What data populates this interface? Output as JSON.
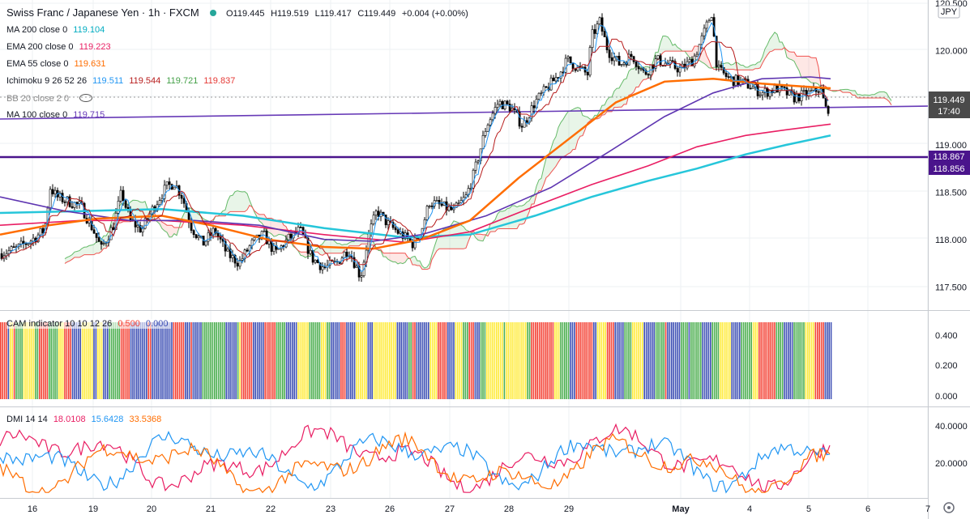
{
  "header": {
    "symbol_title": "Swiss Franc / Japanese Yen · 1h · FXCM",
    "open": "O119.445",
    "high": "H119.519",
    "low": "L119.417",
    "close": "C119.449",
    "change": "+0.004 (+0.00%)"
  },
  "legend": [
    {
      "label": "MA 200 close 0",
      "value": "119.104",
      "color": "#00bcd4"
    },
    {
      "label": "EMA 200 close 0",
      "value": "119.223",
      "color": "#e91e63"
    },
    {
      "label": "EMA 55 close 0",
      "value": "119.631",
      "color": "#ff6d00"
    },
    {
      "label": "Ichimoku 9 26 52 26",
      "values": [
        "119.511",
        "119.544",
        "119.721",
        "119.837"
      ],
      "colors": [
        "#2196f3",
        "#b71c1c",
        "#43a047",
        "#e53935"
      ]
    },
    {
      "label": "BB 20 close 2 0",
      "value": "",
      "color": "#8a8a8a"
    },
    {
      "label": "MA 100 close 0",
      "value": "119.715",
      "color": "#673ab7"
    }
  ],
  "currency": "JPY",
  "price_badges": [
    {
      "text": "119.449",
      "sub": "17:40",
      "color": "#4a4a4a"
    },
    {
      "text": "118.867",
      "color": "#4a148c"
    },
    {
      "text": "118.856",
      "color": "#4a148c"
    }
  ],
  "cam_legend": {
    "label": "CAM indicator 10 10 12 26",
    "v1": "0.500",
    "v2": "0.000"
  },
  "dmi_legend": {
    "label": "DMI 14 14",
    "v1": "18.0108",
    "v2": "15.6428",
    "v3": "33.5368"
  },
  "colors": {
    "up": "#ffffff",
    "down": "#000000",
    "green": "#4caf50",
    "yellow": "#ffeb3b",
    "blue": "#3f51b5",
    "red": "#f44336"
  },
  "chart_data": {
    "type": "candlestick",
    "price_ticks": [
      "120.500",
      "120.000",
      "119.500",
      "119.000",
      "118.500",
      "118.000",
      "117.500"
    ],
    "cam_ticks": [
      "0.400",
      "0.200",
      "0.000"
    ],
    "dmi_ticks": [
      "40.0000",
      "20.0000"
    ],
    "x_labels": [
      "16",
      "19",
      "20",
      "21",
      "22",
      "23",
      "26",
      "27",
      "28",
      "29",
      "May",
      "4",
      "5",
      "6",
      "7"
    ],
    "price_range": [
      117.2,
      120.6
    ],
    "price_path": [
      [
        0,
        117.85
      ],
      [
        20,
        117.9
      ],
      [
        40,
        118.0
      ],
      [
        55,
        118.1
      ],
      [
        62,
        118.55
      ],
      [
        70,
        118.45
      ],
      [
        85,
        118.4
      ],
      [
        100,
        118.35
      ],
      [
        115,
        118.1
      ],
      [
        125,
        117.9
      ],
      [
        140,
        118.15
      ],
      [
        150,
        118.5
      ],
      [
        160,
        118.2
      ],
      [
        175,
        118.1
      ],
      [
        190,
        118.35
      ],
      [
        205,
        118.55
      ],
      [
        215,
        118.6
      ],
      [
        225,
        118.45
      ],
      [
        235,
        118.15
      ],
      [
        250,
        117.95
      ],
      [
        265,
        118.1
      ],
      [
        280,
        117.85
      ],
      [
        295,
        117.75
      ],
      [
        310,
        117.95
      ],
      [
        325,
        118.05
      ],
      [
        340,
        117.85
      ],
      [
        355,
        118.0
      ],
      [
        370,
        118.1
      ],
      [
        385,
        117.8
      ],
      [
        400,
        117.7
      ],
      [
        415,
        117.75
      ],
      [
        430,
        117.9
      ],
      [
        445,
        117.6
      ],
      [
        455,
        118.05
      ],
      [
        465,
        118.3
      ],
      [
        480,
        118.15
      ],
      [
        495,
        118.05
      ],
      [
        510,
        117.95
      ],
      [
        520,
        118.1
      ],
      [
        530,
        118.4
      ],
      [
        545,
        118.35
      ],
      [
        560,
        118.3
      ],
      [
        575,
        118.45
      ],
      [
        585,
        118.7
      ],
      [
        600,
        119.2
      ],
      [
        615,
        119.45
      ],
      [
        630,
        119.4
      ],
      [
        645,
        119.2
      ],
      [
        660,
        119.45
      ],
      [
        675,
        119.6
      ],
      [
        690,
        119.75
      ],
      [
        700,
        119.9
      ],
      [
        715,
        119.8
      ],
      [
        725,
        119.75
      ],
      [
        730,
        120.15
      ],
      [
        740,
        120.3
      ],
      [
        750,
        120.0
      ],
      [
        765,
        119.85
      ],
      [
        780,
        119.95
      ],
      [
        795,
        119.75
      ],
      [
        810,
        119.9
      ],
      [
        825,
        119.85
      ],
      [
        840,
        119.8
      ],
      [
        855,
        119.9
      ],
      [
        865,
        120.1
      ],
      [
        878,
        120.4
      ],
      [
        885,
        119.8
      ],
      [
        900,
        119.7
      ],
      [
        920,
        119.65
      ],
      [
        940,
        119.55
      ],
      [
        960,
        119.6
      ],
      [
        980,
        119.5
      ],
      [
        1000,
        119.55
      ],
      [
        1012,
        119.6
      ],
      [
        1020,
        119.35
      ],
      [
        1025,
        119.45
      ]
    ],
    "ma200": [
      [
        0,
        118.28
      ],
      [
        100,
        118.3
      ],
      [
        200,
        118.32
      ],
      [
        300,
        118.25
      ],
      [
        400,
        118.12
      ],
      [
        500,
        118.02
      ],
      [
        580,
        118.05
      ],
      [
        660,
        118.25
      ],
      [
        730,
        118.45
      ],
      [
        800,
        118.62
      ],
      [
        860,
        118.75
      ],
      [
        920,
        118.9
      ],
      [
        970,
        119.0
      ],
      [
        1025,
        119.1
      ]
    ],
    "ema200": [
      [
        0,
        118.15
      ],
      [
        100,
        118.2
      ],
      [
        200,
        118.2
      ],
      [
        300,
        118.15
      ],
      [
        400,
        118.05
      ],
      [
        500,
        117.97
      ],
      [
        580,
        118.08
      ],
      [
        660,
        118.35
      ],
      [
        730,
        118.58
      ],
      [
        800,
        118.78
      ],
      [
        860,
        118.98
      ],
      [
        920,
        119.1
      ],
      [
        970,
        119.16
      ],
      [
        1025,
        119.22
      ]
    ],
    "ema55": [
      [
        0,
        118.05
      ],
      [
        60,
        118.15
      ],
      [
        120,
        118.22
      ],
      [
        200,
        118.25
      ],
      [
        260,
        118.15
      ],
      [
        330,
        118.0
      ],
      [
        400,
        117.92
      ],
      [
        460,
        117.9
      ],
      [
        520,
        118.0
      ],
      [
        580,
        118.2
      ],
      [
        640,
        118.65
      ],
      [
        700,
        119.05
      ],
      [
        760,
        119.45
      ],
      [
        820,
        119.67
      ],
      [
        880,
        119.7
      ],
      [
        940,
        119.65
      ],
      [
        990,
        119.62
      ],
      [
        1025,
        119.6
      ]
    ],
    "ma100": [
      [
        0,
        118.45
      ],
      [
        80,
        118.3
      ],
      [
        160,
        118.2
      ],
      [
        240,
        118.2
      ],
      [
        320,
        118.15
      ],
      [
        400,
        118.0
      ],
      [
        460,
        117.98
      ],
      [
        520,
        118.05
      ],
      [
        600,
        118.25
      ],
      [
        680,
        118.55
      ],
      [
        750,
        118.92
      ],
      [
        820,
        119.3
      ],
      [
        880,
        119.55
      ],
      [
        940,
        119.7
      ],
      [
        1000,
        119.72
      ],
      [
        1025,
        119.7
      ]
    ]
  }
}
